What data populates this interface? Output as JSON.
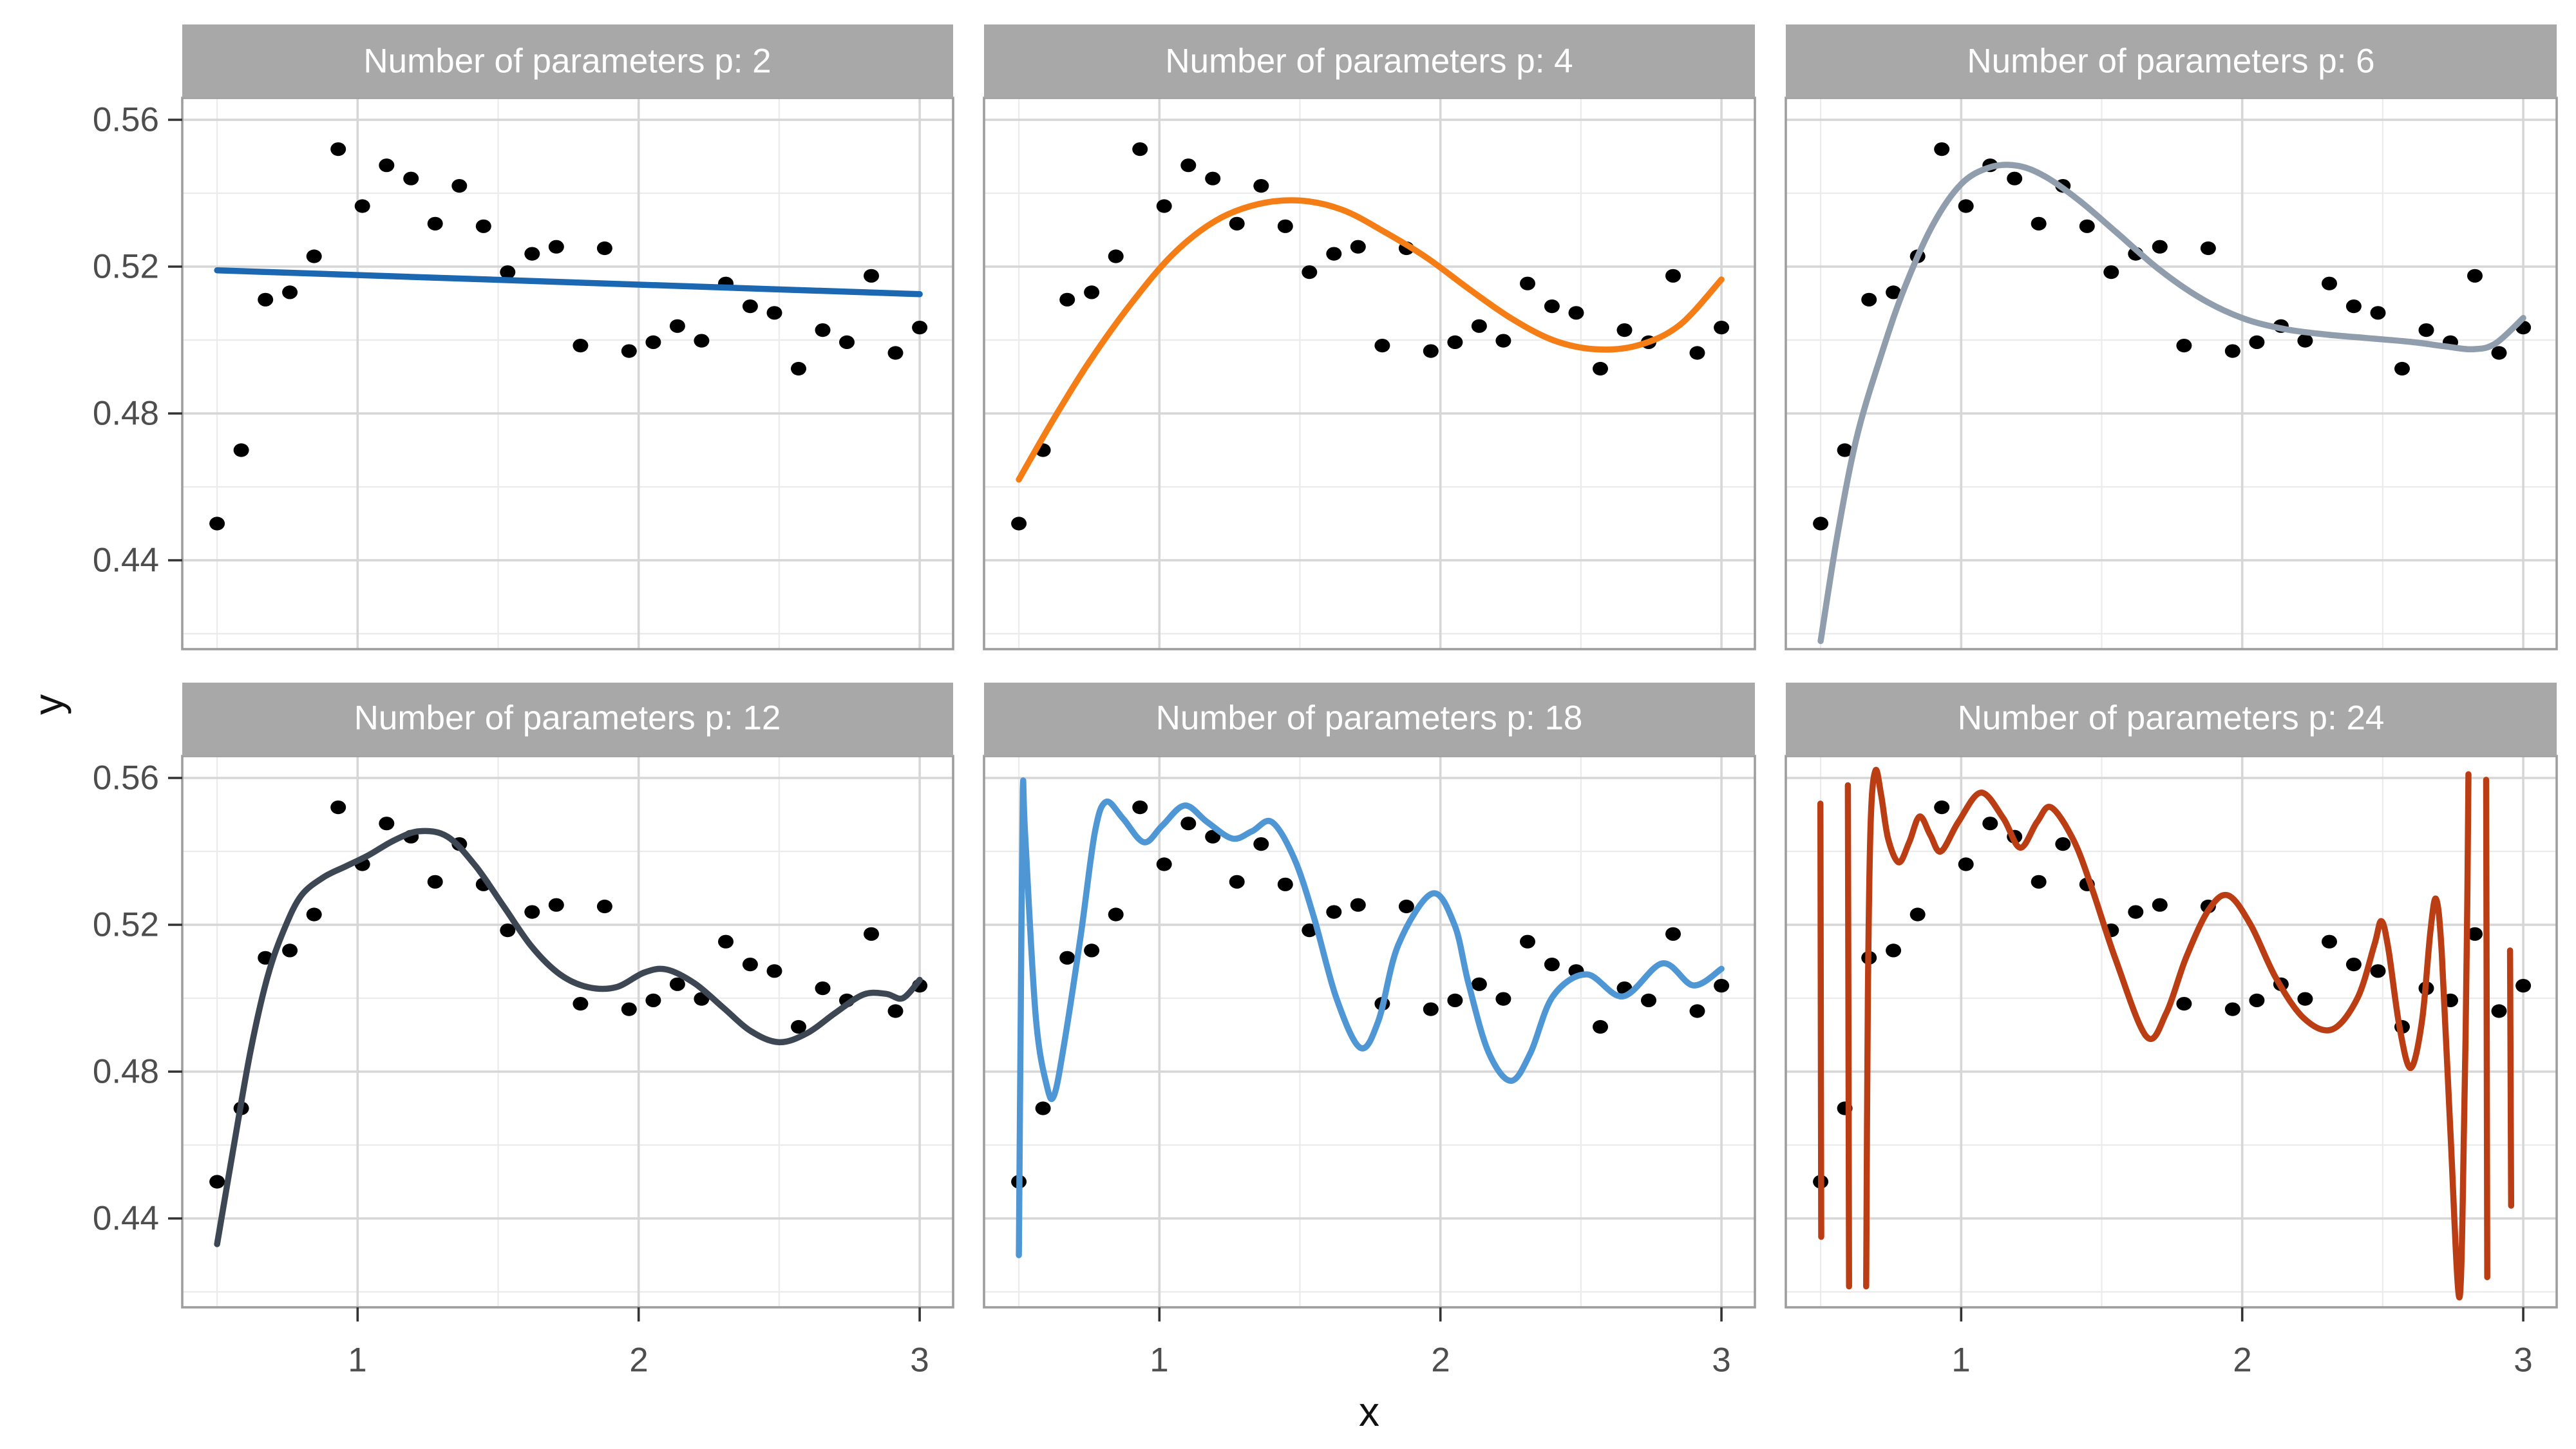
{
  "labels": {
    "strips": [
      "Number of parameters p: 2",
      "Number of parameters p: 4",
      "Number of parameters p: 6",
      "Number of parameters p: 12",
      "Number of parameters p: 18",
      "Number of parameters p: 24"
    ],
    "y_ticks": [
      "0.56",
      "0.52",
      "0.48",
      "0.44"
    ],
    "x_ticks": [
      "1",
      "2",
      "3"
    ],
    "x_title": "x",
    "y_title": "y"
  },
  "colors": {
    "strip_bg": "#a8a8a8",
    "strip_text": "#ffffff",
    "grid_major": "#d6d6d6",
    "grid_minor": "#ebebeb",
    "panel_border": "#9e9e9e",
    "tick_mark": "#333333",
    "tick_label": "#4d4d4d",
    "point": "#000000",
    "fit_p2": "#1b67b2",
    "fit_p4": "#f57d15",
    "fit_p6": "#8f9dac",
    "fit_p12": "#3d4754",
    "fit_p18": "#4f96d4",
    "fit_p24": "#bb3d13"
  },
  "chart_data": {
    "type": "scatter",
    "facet_variable": "Number of parameters p",
    "facet_values": [
      2,
      4,
      6,
      12,
      18,
      24
    ],
    "xlabel": "x",
    "ylabel": "y",
    "x_major_ticks": [
      1,
      2,
      3
    ],
    "y_major_ticks": [
      0.56,
      0.52,
      0.48,
      0.44
    ],
    "x_minor_gridlines": [
      0.5,
      1.5,
      2.5
    ],
    "y_minor_gridlines": [
      0.54,
      0.5,
      0.46,
      0.42
    ],
    "x_range_shown": [
      0.376,
      3.119
    ],
    "y_range_shown": [
      0.4158,
      0.566
    ],
    "points": [
      [
        0.5,
        0.45
      ],
      [
        0.586,
        0.47
      ],
      [
        0.672,
        0.511
      ],
      [
        0.759,
        0.513
      ],
      [
        0.845,
        0.5228
      ],
      [
        0.931,
        0.552
      ],
      [
        1.017,
        0.5365
      ],
      [
        1.103,
        0.5476
      ],
      [
        1.19,
        0.544
      ],
      [
        1.276,
        0.5317
      ],
      [
        1.362,
        0.542
      ],
      [
        1.448,
        0.531
      ],
      [
        1.534,
        0.5185
      ],
      [
        1.621,
        0.5235
      ],
      [
        1.707,
        0.5254
      ],
      [
        1.793,
        0.4985
      ],
      [
        1.879,
        0.525
      ],
      [
        1.966,
        0.497
      ],
      [
        2.052,
        0.4994
      ],
      [
        2.138,
        0.5038
      ],
      [
        2.224,
        0.4998
      ],
      [
        2.31,
        0.5154
      ],
      [
        2.397,
        0.5092
      ],
      [
        2.483,
        0.5074
      ],
      [
        2.569,
        0.4922
      ],
      [
        2.655,
        0.5027
      ],
      [
        2.741,
        0.4994
      ],
      [
        2.828,
        0.5175
      ],
      [
        2.914,
        0.4965
      ],
      [
        3.0,
        0.5034
      ]
    ],
    "fits": [
      {
        "p": 2,
        "color_key": "fit_p2",
        "segments": [
          [
            [
              0.5,
              0.519
            ],
            [
              3.0,
              0.5125
            ]
          ]
        ]
      },
      {
        "p": 4,
        "color_key": "fit_p4",
        "segments": [
          [
            [
              0.5,
              0.462
            ],
            [
              0.62,
              0.478
            ],
            [
              0.75,
              0.494
            ],
            [
              0.9,
              0.51
            ],
            [
              1.05,
              0.5235
            ],
            [
              1.2,
              0.5325
            ],
            [
              1.35,
              0.537
            ],
            [
              1.5,
              0.538
            ],
            [
              1.65,
              0.5355
            ],
            [
              1.8,
              0.5295
            ],
            [
              1.95,
              0.5225
            ],
            [
              2.1,
              0.514
            ],
            [
              2.25,
              0.506
            ],
            [
              2.4,
              0.5
            ],
            [
              2.55,
              0.4975
            ],
            [
              2.7,
              0.4985
            ],
            [
              2.85,
              0.504
            ],
            [
              3.0,
              0.5165
            ]
          ]
        ]
      },
      {
        "p": 6,
        "color_key": "fit_p6",
        "segments": [
          [
            [
              0.5,
              0.418
            ],
            [
              0.56,
              0.447
            ],
            [
              0.63,
              0.474
            ],
            [
              0.72,
              0.497
            ],
            [
              0.8,
              0.5145
            ],
            [
              0.9,
              0.5315
            ],
            [
              1.0,
              0.5425
            ],
            [
              1.1,
              0.547
            ],
            [
              1.2,
              0.5475
            ],
            [
              1.3,
              0.5445
            ],
            [
              1.42,
              0.538
            ],
            [
              1.55,
              0.5295
            ],
            [
              1.7,
              0.5195
            ],
            [
              1.85,
              0.5115
            ],
            [
              2.0,
              0.506
            ],
            [
              2.15,
              0.503
            ],
            [
              2.3,
              0.5015
            ],
            [
              2.45,
              0.5005
            ],
            [
              2.6,
              0.4995
            ],
            [
              2.72,
              0.4983
            ],
            [
              2.82,
              0.4975
            ],
            [
              2.9,
              0.499
            ],
            [
              3.0,
              0.506
            ]
          ]
        ]
      },
      {
        "p": 12,
        "color_key": "fit_p12",
        "segments": [
          [
            [
              0.5,
              0.433
            ],
            [
              0.56,
              0.46
            ],
            [
              0.62,
              0.486
            ],
            [
              0.68,
              0.506
            ],
            [
              0.74,
              0.519
            ],
            [
              0.8,
              0.528
            ],
            [
              0.88,
              0.533
            ],
            [
              0.96,
              0.536
            ],
            [
              1.04,
              0.539
            ],
            [
              1.13,
              0.543
            ],
            [
              1.22,
              0.5455
            ],
            [
              1.32,
              0.544
            ],
            [
              1.42,
              0.536
            ],
            [
              1.52,
              0.525
            ],
            [
              1.62,
              0.514
            ],
            [
              1.72,
              0.5065
            ],
            [
              1.82,
              0.503
            ],
            [
              1.92,
              0.503
            ],
            [
              2.02,
              0.507
            ],
            [
              2.1,
              0.5078
            ],
            [
              2.2,
              0.504
            ],
            [
              2.3,
              0.4975
            ],
            [
              2.4,
              0.491
            ],
            [
              2.5,
              0.488
            ],
            [
              2.6,
              0.4905
            ],
            [
              2.7,
              0.496
            ],
            [
              2.8,
              0.501
            ],
            [
              2.88,
              0.5012
            ],
            [
              2.94,
              0.5
            ],
            [
              3.0,
              0.505
            ]
          ]
        ]
      },
      {
        "p": 18,
        "color_key": "fit_p18",
        "segments": [
          [
            [
              0.5,
              0.43
            ],
            [
              0.507,
              0.5
            ],
            [
              0.514,
              0.5565
            ],
            [
              0.522,
              0.545
            ],
            [
              0.56,
              0.495
            ],
            [
              0.6,
              0.476
            ],
            [
              0.625,
              0.4735
            ],
            [
              0.66,
              0.487
            ],
            [
              0.72,
              0.517
            ],
            [
              0.77,
              0.545
            ],
            [
              0.81,
              0.5535
            ],
            [
              0.87,
              0.549
            ],
            [
              0.945,
              0.5425
            ],
            [
              1.01,
              0.547
            ],
            [
              1.09,
              0.5525
            ],
            [
              1.17,
              0.548
            ],
            [
              1.26,
              0.5435
            ],
            [
              1.33,
              0.5455
            ],
            [
              1.4,
              0.548
            ],
            [
              1.48,
              0.538
            ],
            [
              1.55,
              0.522
            ],
            [
              1.63,
              0.5
            ],
            [
              1.715,
              0.4865
            ],
            [
              1.78,
              0.494
            ],
            [
              1.85,
              0.5145
            ],
            [
              1.97,
              0.5285
            ],
            [
              2.05,
              0.52
            ],
            [
              2.1,
              0.504
            ],
            [
              2.17,
              0.4855
            ],
            [
              2.25,
              0.4775
            ],
            [
              2.32,
              0.485
            ],
            [
              2.4,
              0.5005
            ],
            [
              2.52,
              0.5065
            ],
            [
              2.65,
              0.5005
            ],
            [
              2.79,
              0.5095
            ],
            [
              2.9,
              0.5035
            ],
            [
              3.0,
              0.508
            ]
          ]
        ]
      },
      {
        "p": 24,
        "color_key": "fit_p24",
        "segments": [
          [
            [
              0.499,
              0.553
            ],
            [
              0.502,
              0.435
            ]
          ],
          [
            [
              0.597,
              0.558
            ],
            [
              0.601,
              0.4215
            ]
          ],
          [
            [
              0.662,
              0.4215
            ],
            [
              0.668,
              0.5
            ],
            [
              0.678,
              0.548
            ],
            [
              0.695,
              0.562
            ],
            [
              0.715,
              0.5555
            ],
            [
              0.74,
              0.5435
            ],
            [
              0.778,
              0.537
            ],
            [
              0.815,
              0.5425
            ],
            [
              0.852,
              0.5495
            ],
            [
              0.89,
              0.5445
            ],
            [
              0.928,
              0.54
            ],
            [
              0.99,
              0.548
            ],
            [
              1.07,
              0.556
            ],
            [
              1.15,
              0.549
            ],
            [
              1.21,
              0.541
            ],
            [
              1.27,
              0.548
            ],
            [
              1.32,
              0.552
            ],
            [
              1.4,
              0.543
            ],
            [
              1.465,
              0.53
            ],
            [
              1.55,
              0.5105
            ],
            [
              1.66,
              0.4895
            ],
            [
              1.73,
              0.496
            ],
            [
              1.8,
              0.511
            ],
            [
              1.88,
              0.524
            ],
            [
              1.95,
              0.528
            ],
            [
              2.03,
              0.52
            ],
            [
              2.12,
              0.5055
            ],
            [
              2.22,
              0.4945
            ],
            [
              2.32,
              0.4915
            ],
            [
              2.41,
              0.5
            ],
            [
              2.47,
              0.5145
            ],
            [
              2.495,
              0.521
            ],
            [
              2.52,
              0.5135
            ],
            [
              2.56,
              0.492
            ],
            [
              2.6,
              0.481
            ],
            [
              2.64,
              0.494
            ],
            [
              2.67,
              0.5185
            ],
            [
              2.69,
              0.527
            ],
            [
              2.71,
              0.5125
            ],
            [
              2.74,
              0.465
            ],
            [
              2.773,
              0.4185
            ],
            [
              2.79,
              0.468
            ],
            [
              2.8,
              0.52
            ],
            [
              2.805,
              0.561
            ]
          ],
          [
            [
              2.868,
              0.5595
            ],
            [
              2.872,
              0.424
            ]
          ],
          [
            [
              2.953,
              0.513
            ],
            [
              2.957,
              0.4435
            ]
          ]
        ]
      }
    ]
  }
}
